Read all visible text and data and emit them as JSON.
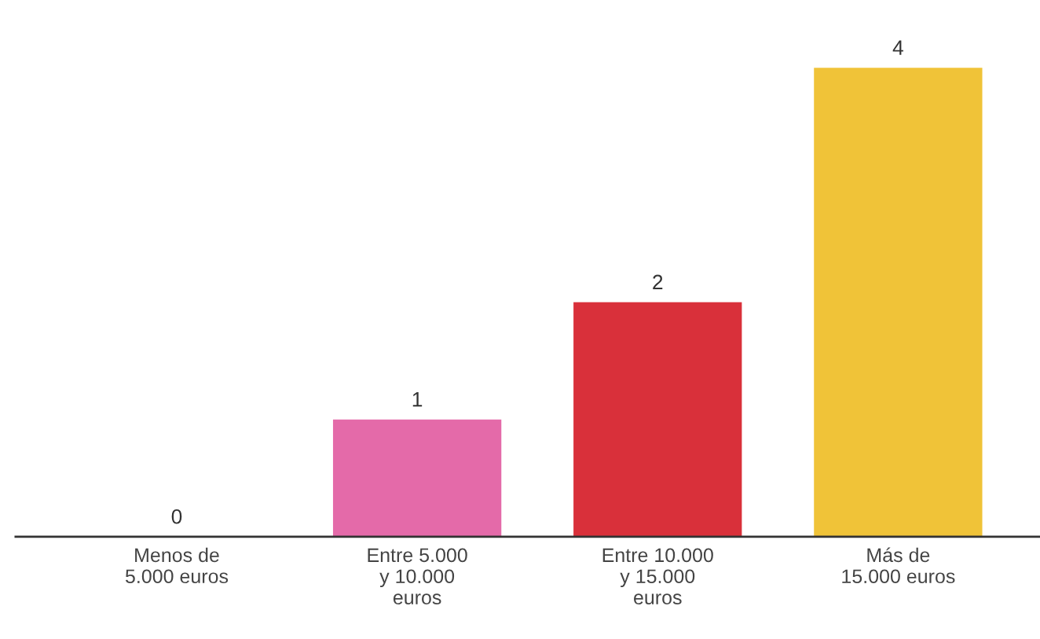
{
  "chart_data": {
    "type": "bar",
    "categories": [
      "Menos de\n5.000 euros",
      "Entre 5.000\ny 10.000\neuros",
      "Entre 10.000\ny 15.000\neuros",
      "Más de\n15.000 euros"
    ],
    "values": [
      0,
      1,
      2,
      4
    ],
    "colors": [
      "#e46aa9",
      "#e46aa9",
      "#d9303a",
      "#f0c338"
    ],
    "data_labels": true,
    "grid": false,
    "tick_labels": "x"
  }
}
